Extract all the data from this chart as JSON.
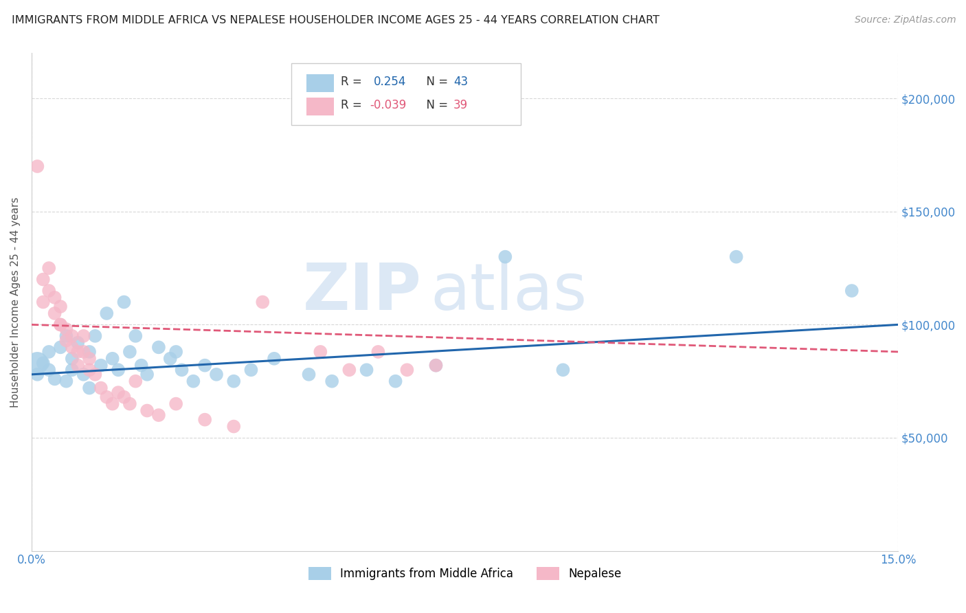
{
  "title": "IMMIGRANTS FROM MIDDLE AFRICA VS NEPALESE HOUSEHOLDER INCOME AGES 25 - 44 YEARS CORRELATION CHART",
  "source": "Source: ZipAtlas.com",
  "ylabel": "Householder Income Ages 25 - 44 years",
  "ytick_labels": [
    "$50,000",
    "$100,000",
    "$150,000",
    "$200,000"
  ],
  "ytick_values": [
    50000,
    100000,
    150000,
    200000
  ],
  "xlim": [
    0.0,
    0.15
  ],
  "ylim": [
    0,
    220000
  ],
  "legend_blue_r": "0.254",
  "legend_blue_n": "43",
  "legend_pink_r": "-0.039",
  "legend_pink_n": "39",
  "legend_label_blue": "Immigrants from Middle Africa",
  "legend_label_pink": "Nepalese",
  "blue_color": "#a8cfe8",
  "pink_color": "#f5b8c8",
  "blue_line_color": "#2166ac",
  "pink_line_color": "#e05878",
  "blue_x": [
    0.001,
    0.002,
    0.003,
    0.003,
    0.004,
    0.005,
    0.006,
    0.006,
    0.007,
    0.007,
    0.008,
    0.009,
    0.01,
    0.01,
    0.011,
    0.012,
    0.013,
    0.014,
    0.015,
    0.016,
    0.017,
    0.018,
    0.019,
    0.02,
    0.022,
    0.024,
    0.025,
    0.026,
    0.028,
    0.03,
    0.032,
    0.035,
    0.038,
    0.042,
    0.048,
    0.052,
    0.058,
    0.063,
    0.07,
    0.082,
    0.092,
    0.122,
    0.142
  ],
  "blue_y": [
    78000,
    83000,
    80000,
    88000,
    76000,
    90000,
    95000,
    75000,
    85000,
    80000,
    92000,
    78000,
    88000,
    72000,
    95000,
    82000,
    105000,
    85000,
    80000,
    110000,
    88000,
    95000,
    82000,
    78000,
    90000,
    85000,
    88000,
    80000,
    75000,
    82000,
    78000,
    75000,
    80000,
    85000,
    78000,
    75000,
    80000,
    75000,
    82000,
    130000,
    80000,
    130000,
    115000
  ],
  "pink_x": [
    0.001,
    0.002,
    0.002,
    0.003,
    0.003,
    0.004,
    0.004,
    0.005,
    0.005,
    0.006,
    0.006,
    0.007,
    0.007,
    0.008,
    0.008,
    0.009,
    0.009,
    0.01,
    0.01,
    0.011,
    0.012,
    0.013,
    0.014,
    0.015,
    0.016,
    0.017,
    0.018,
    0.02,
    0.022,
    0.025,
    0.03,
    0.035,
    0.04,
    0.05,
    0.055,
    0.06,
    0.065,
    0.07,
    0.005
  ],
  "pink_y": [
    170000,
    110000,
    120000,
    125000,
    115000,
    112000,
    105000,
    108000,
    100000,
    98000,
    93000,
    90000,
    95000,
    88000,
    82000,
    95000,
    88000,
    85000,
    80000,
    78000,
    72000,
    68000,
    65000,
    70000,
    68000,
    65000,
    75000,
    62000,
    60000,
    65000,
    58000,
    55000,
    110000,
    88000,
    80000,
    88000,
    80000,
    82000,
    100000
  ],
  "watermark_zip": "ZIP",
  "watermark_atlas": "atlas",
  "grid_color": "#d8d8d8",
  "background_color": "#ffffff",
  "title_fontsize": 11.5,
  "axis_label_color": "#4488cc",
  "watermark_color": "#dce8f5"
}
